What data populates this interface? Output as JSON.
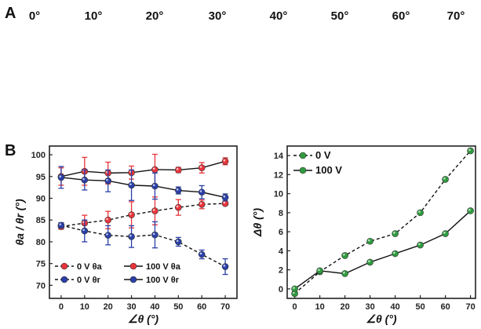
{
  "panel_a": {
    "letter": "A",
    "angle_labels": [
      "0°",
      "10°",
      "20°",
      "30°",
      "40°",
      "50°",
      "60°",
      "70°"
    ]
  },
  "panel_b": {
    "letter": "B"
  },
  "colors": {
    "red": "#e8343a",
    "blue": "#2a3fa8",
    "green": "#2f9a3e",
    "axis": "#222222"
  },
  "chart_data": [
    {
      "type": "line",
      "x": [
        0,
        10,
        20,
        30,
        40,
        50,
        60,
        70
      ],
      "xlabel": "∠θ (°)",
      "ylabel": "θa / θr (°)",
      "xlim": [
        -5,
        75
      ],
      "ylim": [
        67,
        102
      ],
      "xticks": [
        "0",
        "10",
        "20",
        "30",
        "40",
        "50",
        "60",
        "70"
      ],
      "yticks": [
        "70",
        "75",
        "80",
        "85",
        "90",
        "95",
        "100"
      ],
      "legend_position": "bottom-left",
      "series": [
        {
          "name": "0 V θa",
          "color": "red",
          "dashed": true,
          "values": [
            83.5,
            84.3,
            85.0,
            86.2,
            87.1,
            87.9,
            88.6,
            88.8
          ],
          "errors": [
            0.6,
            1.8,
            2.0,
            3.0,
            3.2,
            1.8,
            1.0,
            0.3
          ]
        },
        {
          "name": "100 V θa",
          "color": "red",
          "dashed": false,
          "values": [
            95.0,
            96.2,
            95.8,
            95.9,
            96.6,
            96.5,
            97.0,
            98.5
          ],
          "errors": [
            2.0,
            3.2,
            2.5,
            1.5,
            3.5,
            0.6,
            1.2,
            0.8
          ]
        },
        {
          "name": "0 V θr",
          "color": "blue",
          "dashed": true,
          "values": [
            83.8,
            82.5,
            81.5,
            81.2,
            81.6,
            80.0,
            77.1,
            74.3
          ],
          "errors": [
            0.6,
            2.5,
            2.2,
            2.5,
            3.0,
            1.0,
            1.0,
            1.8
          ]
        },
        {
          "name": "100 V θr",
          "color": "blue",
          "dashed": false,
          "values": [
            94.8,
            94.2,
            94.0,
            93.0,
            92.8,
            91.8,
            91.4,
            90.2
          ],
          "errors": [
            2.5,
            2.3,
            2.5,
            3.5,
            3.0,
            0.8,
            1.5,
            0.8
          ]
        }
      ]
    },
    {
      "type": "line",
      "x": [
        0,
        10,
        20,
        30,
        40,
        50,
        60,
        70
      ],
      "xlabel": "∠θ (°)",
      "ylabel": "Δθ (°)",
      "xlim": [
        -3,
        72
      ],
      "ylim": [
        -1,
        15
      ],
      "xticks": [
        "0",
        "10",
        "20",
        "30",
        "40",
        "50",
        "60",
        "70"
      ],
      "yticks": [
        "0",
        "2",
        "4",
        "6",
        "8",
        "10",
        "12",
        "14"
      ],
      "legend_position": "top-left",
      "series": [
        {
          "name": "0 V",
          "color": "green",
          "dashed": true,
          "values": [
            -0.5,
            1.8,
            3.5,
            5.0,
            5.8,
            8.0,
            11.5,
            14.5
          ]
        },
        {
          "name": "100 V",
          "color": "green",
          "dashed": false,
          "values": [
            0.0,
            1.9,
            1.6,
            2.8,
            3.7,
            4.6,
            5.8,
            8.2
          ]
        }
      ]
    }
  ]
}
